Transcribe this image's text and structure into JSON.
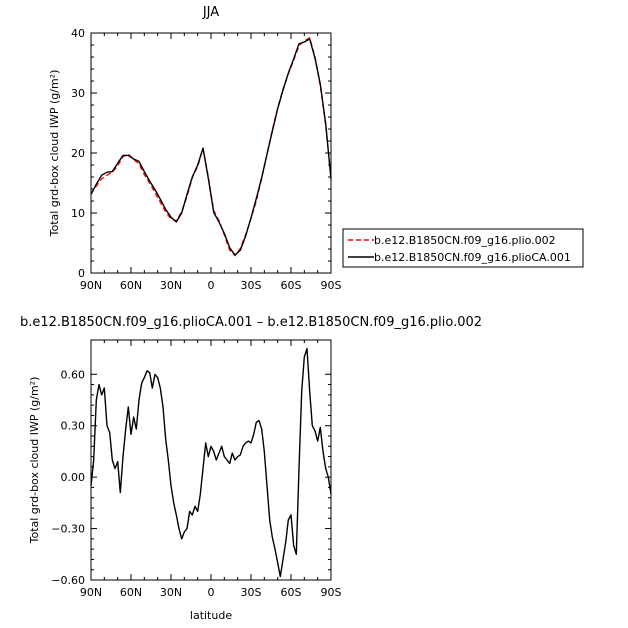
{
  "chart_data": [
    {
      "type": "line",
      "title": "JJA",
      "xlabel": "",
      "ylabel": "Total grd-box cloud IWP (g/m²)",
      "ylim": [
        0,
        40
      ],
      "xlim": [
        90,
        -90
      ],
      "x_ticks": [
        90,
        60,
        30,
        0,
        -30,
        -60,
        -90
      ],
      "x_tick_labels": [
        "90N",
        "60N",
        "30N",
        "0",
        "30S",
        "60S",
        "90S"
      ],
      "y_ticks": [
        0,
        10,
        20,
        30,
        40
      ],
      "y_tick_labels": [
        "0",
        "10",
        "20",
        "30",
        "40"
      ],
      "legend_position": "right",
      "series": [
        {
          "name": "b.e12.B1850CN.f09_g16.plio.002",
          "style": "dashed",
          "color": "#ff0000",
          "x": [
            90,
            86,
            82,
            78,
            74,
            70,
            66,
            62,
            58,
            54,
            50,
            46,
            42,
            38,
            34,
            30,
            26,
            22,
            18,
            14,
            10,
            6,
            2,
            -2,
            -6,
            -10,
            -14,
            -18,
            -22,
            -26,
            -30,
            -34,
            -38,
            -42,
            -46,
            -50,
            -54,
            -58,
            -62,
            -66,
            -70,
            -74,
            -78,
            -82,
            -86,
            -90
          ],
          "y": [
            13.2,
            14.5,
            15.7,
            16.3,
            16.8,
            17.9,
            19.4,
            19.8,
            18.9,
            18.2,
            16.4,
            15.0,
            13.4,
            11.8,
            10.2,
            9.0,
            8.7,
            10.2,
            12.8,
            15.9,
            17.8,
            20.8,
            16.0,
            10.4,
            8.7,
            6.4,
            3.8,
            2.9,
            4.1,
            6.4,
            9.1,
            12.0,
            15.8,
            19.8,
            23.8,
            27.5,
            30.6,
            33.2,
            35.5,
            37.9,
            38.7,
            39.2,
            36.0,
            31.2,
            24.6,
            16.0
          ]
        },
        {
          "name": "b.e12.B1850CN.f09_g16.plioCA.001",
          "style": "solid",
          "color": "#000000",
          "x": [
            90,
            86,
            82,
            78,
            74,
            70,
            66,
            62,
            58,
            54,
            50,
            46,
            42,
            38,
            34,
            30,
            26,
            22,
            18,
            14,
            10,
            6,
            2,
            -2,
            -6,
            -10,
            -14,
            -18,
            -22,
            -26,
            -30,
            -34,
            -38,
            -42,
            -46,
            -50,
            -54,
            -58,
            -62,
            -66,
            -70,
            -74,
            -78,
            -82,
            -86,
            -90
          ],
          "y": [
            13.1,
            14.8,
            16.3,
            16.8,
            16.9,
            18.3,
            19.6,
            19.6,
            19.0,
            18.6,
            16.9,
            15.3,
            13.9,
            12.3,
            10.6,
            9.3,
            8.5,
            10.0,
            13.1,
            16.0,
            18.0,
            20.8,
            15.8,
            10.1,
            8.5,
            6.6,
            4.2,
            3.0,
            3.8,
            6.2,
            9.2,
            12.4,
            15.9,
            19.8,
            23.6,
            27.4,
            30.5,
            33.3,
            35.7,
            38.2,
            38.5,
            39.0,
            35.8,
            31.5,
            24.9,
            15.6
          ]
        }
      ]
    },
    {
      "type": "line",
      "title": "b.e12.B1850CN.f09_g16.plioCA.001 – b.e12.B1850CN.f09_g16.plio.002",
      "xlabel": "latitude",
      "ylabel": "Total grd-box cloud IWP (g/m²)",
      "ylim": [
        -0.6,
        0.8
      ],
      "xlim": [
        90,
        -90
      ],
      "x_ticks": [
        90,
        60,
        30,
        0,
        -30,
        -60,
        -90
      ],
      "x_tick_labels": [
        "90N",
        "60N",
        "30N",
        "0",
        "30S",
        "60S",
        "90S"
      ],
      "y_ticks": [
        -0.6,
        -0.3,
        0.0,
        0.3,
        0.6
      ],
      "y_tick_labels": [
        "−0.60",
        "−0.30",
        "0.00",
        "0.30",
        "0.60"
      ],
      "series": [
        {
          "style": "solid",
          "color": "#000000",
          "x": [
            90,
            88,
            86,
            84,
            82,
            80,
            78,
            76,
            74,
            72,
            70,
            68,
            66,
            64,
            62,
            60,
            58,
            56,
            54,
            52,
            50,
            48,
            46,
            44,
            42,
            40,
            38,
            36,
            34,
            32,
            30,
            28,
            26,
            24,
            22,
            20,
            18,
            16,
            14,
            12,
            10,
            8,
            6,
            4,
            2,
            0,
            -2,
            -4,
            -6,
            -8,
            -10,
            -12,
            -14,
            -16,
            -18,
            -20,
            -22,
            -24,
            -26,
            -28,
            -30,
            -32,
            -34,
            -36,
            -38,
            -40,
            -42,
            -44,
            -46,
            -48,
            -50,
            -52,
            -54,
            -56,
            -58,
            -60,
            -62,
            -64,
            -66,
            -68,
            -70,
            -72,
            -74,
            -76,
            -78,
            -80,
            -82,
            -84,
            -86,
            -88,
            -90
          ],
          "y": [
            -0.05,
            0.1,
            0.45,
            0.54,
            0.48,
            0.52,
            0.3,
            0.26,
            0.1,
            0.05,
            0.09,
            -0.09,
            0.12,
            0.28,
            0.41,
            0.25,
            0.35,
            0.28,
            0.45,
            0.55,
            0.58,
            0.62,
            0.61,
            0.52,
            0.6,
            0.58,
            0.52,
            0.41,
            0.22,
            0.1,
            -0.05,
            -0.15,
            -0.22,
            -0.3,
            -0.36,
            -0.32,
            -0.3,
            -0.2,
            -0.22,
            -0.17,
            -0.2,
            -0.1,
            0.05,
            0.2,
            0.12,
            0.18,
            0.15,
            0.1,
            0.14,
            0.18,
            0.12,
            0.1,
            0.08,
            0.14,
            0.1,
            0.12,
            0.13,
            0.18,
            0.2,
            0.21,
            0.2,
            0.25,
            0.32,
            0.33,
            0.28,
            0.15,
            -0.05,
            -0.25,
            -0.35,
            -0.42,
            -0.5,
            -0.58,
            -0.48,
            -0.38,
            -0.25,
            -0.22,
            -0.4,
            -0.45,
            0.05,
            0.5,
            0.7,
            0.75,
            0.5,
            0.3,
            0.27,
            0.21,
            0.29,
            0.15,
            0.05,
            0.0,
            -0.1
          ]
        }
      ]
    }
  ],
  "colors": {
    "control_series": "#ff0000",
    "experiment_series": "#000000",
    "axes": "#000000",
    "background": "#ffffff"
  }
}
